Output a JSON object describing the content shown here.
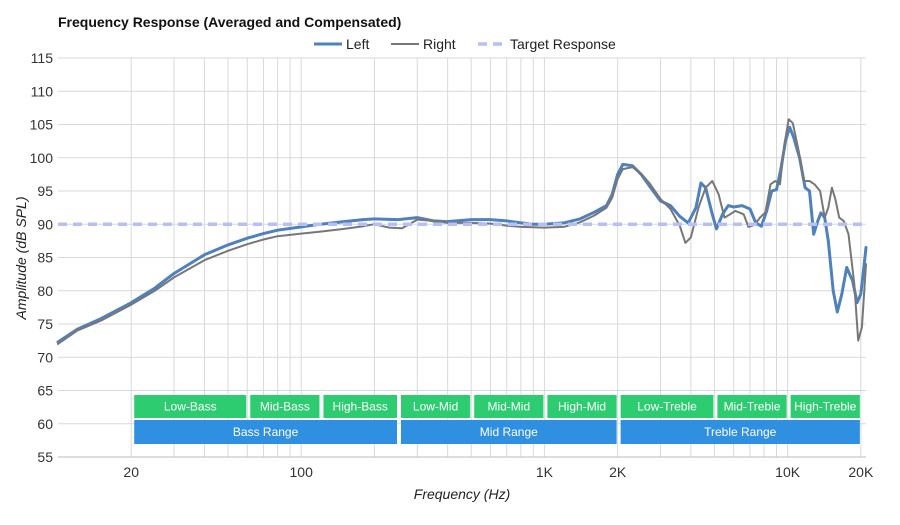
{
  "chart_data": {
    "type": "line",
    "title": "Frequency Response (Averaged and Compensated)",
    "xlabel": "Frequency (Hz)",
    "ylabel": "Amplitude (dB SPL)",
    "x_scale": "log",
    "xlim": [
      10,
      21000
    ],
    "ylim": [
      55,
      115
    ],
    "y_ticks": [
      55,
      60,
      65,
      70,
      75,
      80,
      85,
      90,
      95,
      100,
      105,
      110,
      115
    ],
    "x_tick_labels": [
      {
        "value": 20,
        "label": "20"
      },
      {
        "value": 100,
        "label": "100"
      },
      {
        "value": 1000,
        "label": "1K"
      },
      {
        "value": 2000,
        "label": "2K"
      },
      {
        "value": 10000,
        "label": "10K"
      },
      {
        "value": 20000,
        "label": "20K"
      }
    ],
    "grid": true,
    "legend_position": "top-center",
    "series": [
      {
        "name": "Left",
        "color": "#4f81bd",
        "style": "solid",
        "points": [
          [
            10,
            72.3
          ],
          [
            12,
            74.2
          ],
          [
            15,
            75.8
          ],
          [
            20,
            78.2
          ],
          [
            25,
            80.4
          ],
          [
            30,
            82.6
          ],
          [
            40,
            85.4
          ],
          [
            50,
            86.9
          ],
          [
            60,
            87.9
          ],
          [
            70,
            88.6
          ],
          [
            80,
            89.1
          ],
          [
            100,
            89.6
          ],
          [
            120,
            90.0
          ],
          [
            150,
            90.4
          ],
          [
            180,
            90.7
          ],
          [
            200,
            90.8
          ],
          [
            250,
            90.7
          ],
          [
            300,
            91.0
          ],
          [
            350,
            90.5
          ],
          [
            400,
            90.4
          ],
          [
            500,
            90.7
          ],
          [
            600,
            90.7
          ],
          [
            700,
            90.5
          ],
          [
            800,
            90.2
          ],
          [
            900,
            90.0
          ],
          [
            1000,
            90.0
          ],
          [
            1200,
            90.2
          ],
          [
            1400,
            90.8
          ],
          [
            1600,
            91.8
          ],
          [
            1800,
            92.8
          ],
          [
            1900,
            94.5
          ],
          [
            2000,
            97.5
          ],
          [
            2100,
            99.0
          ],
          [
            2300,
            98.8
          ],
          [
            2500,
            97.5
          ],
          [
            2700,
            95.8
          ],
          [
            3000,
            93.5
          ],
          [
            3300,
            92.8
          ],
          [
            3600,
            91.2
          ],
          [
            3900,
            90.2
          ],
          [
            4200,
            92.5
          ],
          [
            4400,
            96.2
          ],
          [
            4600,
            95.5
          ],
          [
            4900,
            91.5
          ],
          [
            5100,
            89.3
          ],
          [
            5400,
            91.5
          ],
          [
            5700,
            92.8
          ],
          [
            6000,
            92.6
          ],
          [
            6500,
            92.8
          ],
          [
            7000,
            92.3
          ],
          [
            7400,
            90.2
          ],
          [
            7800,
            89.7
          ],
          [
            8200,
            92.0
          ],
          [
            8600,
            95.0
          ],
          [
            9000,
            95.2
          ],
          [
            9400,
            98.5
          ],
          [
            9800,
            102.5
          ],
          [
            10200,
            104.6
          ],
          [
            10600,
            103.0
          ],
          [
            11200,
            100.0
          ],
          [
            11800,
            95.5
          ],
          [
            12300,
            95.0
          ],
          [
            12800,
            88.5
          ],
          [
            13300,
            90.5
          ],
          [
            13700,
            91.7
          ],
          [
            14200,
            91.0
          ],
          [
            14700,
            87.5
          ],
          [
            15400,
            80.0
          ],
          [
            16000,
            76.8
          ],
          [
            16700,
            79.5
          ],
          [
            17500,
            83.5
          ],
          [
            18500,
            81.5
          ],
          [
            19300,
            78.2
          ],
          [
            20000,
            79.5
          ],
          [
            20500,
            83.0
          ],
          [
            21000,
            86.5
          ]
        ]
      },
      {
        "name": "Right",
        "color": "#777777",
        "style": "solid",
        "points": [
          [
            10,
            72.0
          ],
          [
            12,
            74.0
          ],
          [
            15,
            75.5
          ],
          [
            20,
            77.9
          ],
          [
            25,
            80.0
          ],
          [
            30,
            82.0
          ],
          [
            40,
            84.6
          ],
          [
            50,
            86.0
          ],
          [
            60,
            87.0
          ],
          [
            70,
            87.7
          ],
          [
            80,
            88.2
          ],
          [
            100,
            88.6
          ],
          [
            120,
            88.9
          ],
          [
            150,
            89.3
          ],
          [
            180,
            89.7
          ],
          [
            200,
            90.0
          ],
          [
            230,
            89.5
          ],
          [
            260,
            89.4
          ],
          [
            300,
            90.7
          ],
          [
            350,
            90.5
          ],
          [
            400,
            90.2
          ],
          [
            500,
            90.2
          ],
          [
            600,
            90.1
          ],
          [
            700,
            89.8
          ],
          [
            800,
            89.6
          ],
          [
            1000,
            89.5
          ],
          [
            1200,
            89.6
          ],
          [
            1400,
            90.3
          ],
          [
            1600,
            91.3
          ],
          [
            1800,
            92.5
          ],
          [
            1900,
            94.0
          ],
          [
            2000,
            96.8
          ],
          [
            2100,
            98.3
          ],
          [
            2300,
            98.6
          ],
          [
            2500,
            97.6
          ],
          [
            2700,
            96.2
          ],
          [
            3000,
            93.8
          ],
          [
            3300,
            92.3
          ],
          [
            3600,
            89.8
          ],
          [
            3800,
            87.2
          ],
          [
            4000,
            88.0
          ],
          [
            4300,
            92.5
          ],
          [
            4600,
            95.5
          ],
          [
            4900,
            96.5
          ],
          [
            5200,
            94.5
          ],
          [
            5500,
            91.0
          ],
          [
            5800,
            91.5
          ],
          [
            6100,
            92.0
          ],
          [
            6600,
            91.5
          ],
          [
            6900,
            89.6
          ],
          [
            7300,
            89.9
          ],
          [
            7700,
            91.0
          ],
          [
            8100,
            91.8
          ],
          [
            8500,
            96.0
          ],
          [
            8900,
            96.5
          ],
          [
            9300,
            96.0
          ],
          [
            9700,
            102.0
          ],
          [
            10100,
            105.8
          ],
          [
            10500,
            105.2
          ],
          [
            11100,
            101.0
          ],
          [
            11700,
            96.5
          ],
          [
            12300,
            96.5
          ],
          [
            12900,
            96.0
          ],
          [
            13600,
            95.0
          ],
          [
            14200,
            91.0
          ],
          [
            14700,
            92.5
          ],
          [
            15200,
            95.5
          ],
          [
            15700,
            93.8
          ],
          [
            16300,
            91.0
          ],
          [
            17000,
            90.5
          ],
          [
            17800,
            88.5
          ],
          [
            18800,
            81.0
          ],
          [
            19500,
            72.5
          ],
          [
            20200,
            74.5
          ],
          [
            21000,
            84.0
          ]
        ]
      },
      {
        "name": "Target Response",
        "color": "#b8bff7",
        "style": "dashed",
        "points": [
          [
            10,
            90
          ],
          [
            21000,
            90
          ]
        ]
      }
    ],
    "bands": [
      {
        "label": "Low-Bass",
        "from": 20,
        "to": 60,
        "row": 1
      },
      {
        "label": "Mid-Bass",
        "from": 60,
        "to": 120,
        "row": 1
      },
      {
        "label": "High-Bass",
        "from": 120,
        "to": 250,
        "row": 1
      },
      {
        "label": "Low-Mid",
        "from": 250,
        "to": 500,
        "row": 1
      },
      {
        "label": "Mid-Mid",
        "from": 500,
        "to": 1000,
        "row": 1
      },
      {
        "label": "High-Mid",
        "from": 1000,
        "to": 2000,
        "row": 1
      },
      {
        "label": "Low-Treble",
        "from": 2000,
        "to": 5000,
        "row": 1
      },
      {
        "label": "Mid-Treble",
        "from": 5000,
        "to": 10000,
        "row": 1
      },
      {
        "label": "High-Treble",
        "from": 10000,
        "to": 20000,
        "row": 1
      },
      {
        "label": "Bass Range",
        "from": 20,
        "to": 250,
        "row": 2
      },
      {
        "label": "Mid Range",
        "from": 250,
        "to": 2000,
        "row": 2
      },
      {
        "label": "Treble Range",
        "from": 2000,
        "to": 20000,
        "row": 2
      }
    ],
    "band_colors": {
      "row1": "#2ecc71",
      "row2": "#2f8fe0"
    }
  }
}
